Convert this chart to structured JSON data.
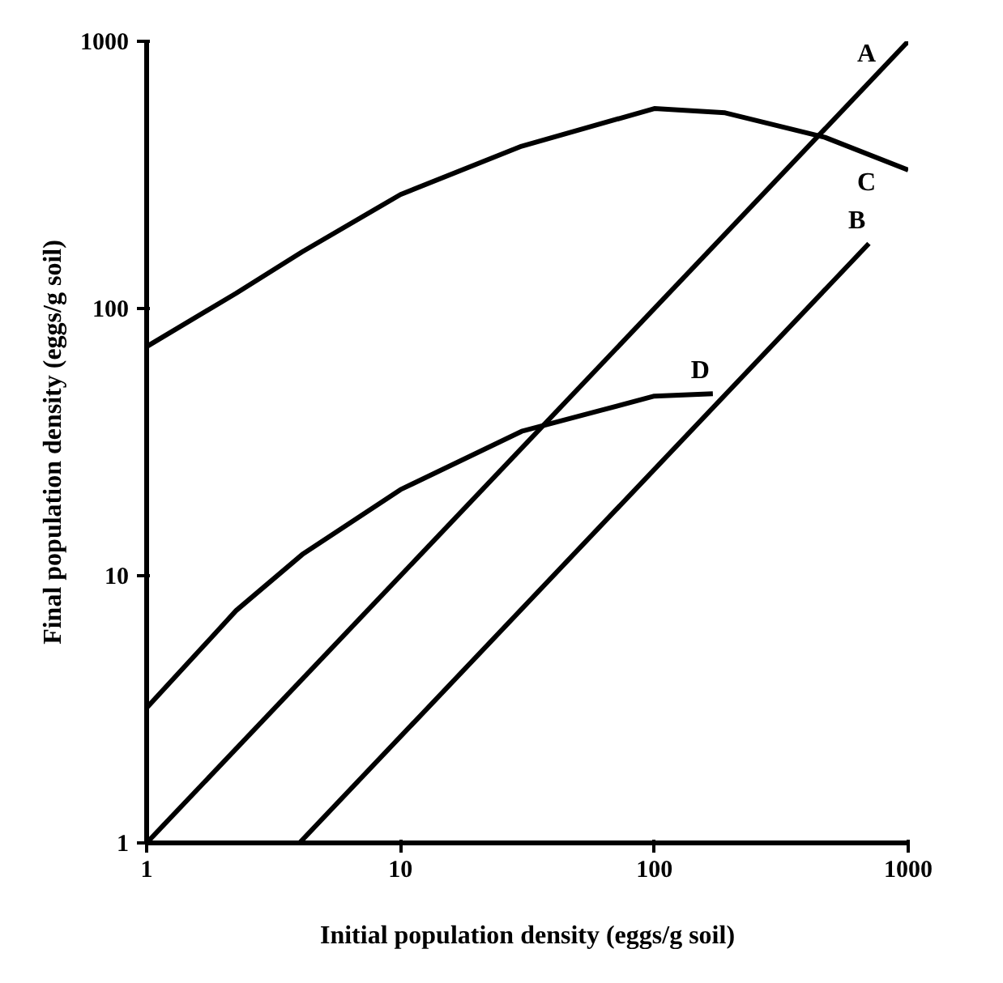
{
  "chart_data": {
    "type": "line",
    "xlabel": "Initial population density (eggs/g soil)",
    "ylabel": "Final population density (eggs/g soil)",
    "log": "xy",
    "xlim": [
      1,
      1000
    ],
    "ylim": [
      1,
      1000
    ],
    "xticks": [
      1,
      10,
      100,
      1000
    ],
    "yticks": [
      1,
      10,
      100,
      1000
    ],
    "grid": false,
    "marker": "none",
    "line_style": "solid",
    "color": "#000000",
    "series": [
      {
        "name": "A",
        "x": [
          1,
          1000
        ],
        "values": [
          1,
          1000
        ]
      },
      {
        "name": "B",
        "x": [
          1000,
          4,
          700
        ],
        "values": [
          1,
          1,
          175
        ]
      },
      {
        "name": "C",
        "x": [
          1,
          2.25,
          4.1,
          10,
          30,
          100,
          190,
          470,
          1000
        ],
        "values": [
          72,
          114,
          163,
          267,
          405,
          560,
          540,
          437,
          330
        ]
      },
      {
        "name": "D",
        "x": [
          1,
          2.25,
          4.1,
          10,
          30,
          100,
          170
        ],
        "values": [
          3.2,
          7.4,
          12,
          21,
          34.7,
          47,
          48
        ]
      }
    ]
  }
}
